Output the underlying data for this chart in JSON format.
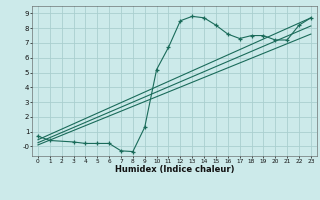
{
  "xlabel": "Humidex (Indice chaleur)",
  "bg_color": "#cceaea",
  "grid_color": "#aacfcf",
  "line_color": "#1a6b5a",
  "xlim": [
    -0.5,
    23.5
  ],
  "ylim": [
    -0.65,
    9.5
  ],
  "xticks": [
    0,
    1,
    2,
    3,
    4,
    5,
    6,
    7,
    8,
    9,
    10,
    11,
    12,
    13,
    14,
    15,
    16,
    17,
    18,
    19,
    20,
    21,
    22,
    23
  ],
  "yticks": [
    0,
    1,
    2,
    3,
    4,
    5,
    6,
    7,
    8,
    9
  ],
  "ytick_labels": [
    "-0",
    "1",
    "2",
    "3",
    "4",
    "5",
    "6",
    "7",
    "8",
    "9"
  ],
  "curve1_x": [
    0,
    1,
    3,
    4,
    5,
    6,
    7,
    8,
    9,
    10,
    11,
    12,
    13,
    14,
    15,
    16,
    17,
    18,
    19,
    20,
    21,
    22,
    23
  ],
  "curve1_y": [
    0.7,
    0.4,
    0.3,
    0.2,
    0.2,
    0.2,
    -0.3,
    -0.35,
    1.3,
    5.2,
    6.7,
    8.5,
    8.8,
    8.7,
    8.2,
    7.6,
    7.3,
    7.5,
    7.5,
    7.2,
    7.2,
    8.2,
    8.7
  ],
  "line1_x": [
    0,
    23
  ],
  "line1_y": [
    0.1,
    7.6
  ],
  "line2_x": [
    0,
    23
  ],
  "line2_y": [
    0.25,
    8.15
  ],
  "line3_x": [
    0,
    23
  ],
  "line3_y": [
    0.45,
    8.7
  ]
}
